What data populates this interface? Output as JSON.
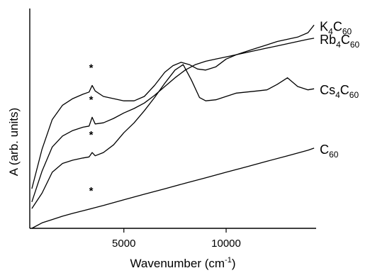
{
  "chart_data": {
    "type": "line",
    "xlabel": "Wavenumber (cm",
    "xlabel_sup": "-1",
    "xlabel_end": ")",
    "ylabel": "A (arb. units)",
    "xlim": [
      400,
      14400
    ],
    "ylim": [
      0,
      10
    ],
    "x_ticks": [
      5000,
      10000
    ],
    "x_tick_labels": [
      "5000",
      "10000"
    ],
    "grid": false,
    "legend": "labels at right end of each curve",
    "line_color": "#000000",
    "series": [
      {
        "name": "K4C60",
        "label_main": [
          "K",
          "C"
        ],
        "label_sub": [
          "4",
          "60"
        ],
        "points": [
          [
            500,
            1.8
          ],
          [
            1000,
            3.6
          ],
          [
            1500,
            4.95
          ],
          [
            2000,
            5.6
          ],
          [
            2500,
            5.9
          ],
          [
            3000,
            6.1
          ],
          [
            3300,
            6.2
          ],
          [
            3450,
            6.5
          ],
          [
            3600,
            6.25
          ],
          [
            4000,
            6.0
          ],
          [
            4500,
            5.9
          ],
          [
            5000,
            5.8
          ],
          [
            5500,
            5.8
          ],
          [
            6000,
            6.0
          ],
          [
            6500,
            6.5
          ],
          [
            7000,
            7.1
          ],
          [
            7400,
            7.4
          ],
          [
            7800,
            7.55
          ],
          [
            8200,
            7.45
          ],
          [
            8600,
            7.25
          ],
          [
            9000,
            7.2
          ],
          [
            9500,
            7.35
          ],
          [
            10000,
            7.7
          ],
          [
            10500,
            7.9
          ],
          [
            11000,
            8.05
          ],
          [
            11500,
            8.2
          ],
          [
            12000,
            8.35
          ],
          [
            12500,
            8.5
          ],
          [
            13000,
            8.6
          ],
          [
            13500,
            8.7
          ],
          [
            14000,
            8.9
          ],
          [
            14300,
            9.25
          ]
        ]
      },
      {
        "name": "Rb4C60",
        "label_main": [
          "Rb",
          "C"
        ],
        "label_sub": [
          "4",
          "60"
        ],
        "points": [
          [
            500,
            1.2
          ],
          [
            1000,
            2.6
          ],
          [
            1500,
            3.7
          ],
          [
            2000,
            4.2
          ],
          [
            2500,
            4.45
          ],
          [
            3000,
            4.6
          ],
          [
            3300,
            4.65
          ],
          [
            3450,
            5.05
          ],
          [
            3600,
            4.75
          ],
          [
            4000,
            4.8
          ],
          [
            4500,
            5.0
          ],
          [
            5000,
            5.25
          ],
          [
            5500,
            5.45
          ],
          [
            6000,
            5.7
          ],
          [
            6500,
            6.05
          ],
          [
            7000,
            6.45
          ],
          [
            7500,
            6.85
          ],
          [
            8000,
            7.2
          ],
          [
            8500,
            7.45
          ],
          [
            9000,
            7.6
          ],
          [
            9500,
            7.7
          ],
          [
            10000,
            7.8
          ],
          [
            10500,
            7.9
          ],
          [
            11000,
            8.0
          ],
          [
            11500,
            8.1
          ],
          [
            12000,
            8.2
          ],
          [
            12500,
            8.3
          ],
          [
            13000,
            8.4
          ],
          [
            13500,
            8.5
          ],
          [
            14000,
            8.6
          ],
          [
            14300,
            8.65
          ]
        ]
      },
      {
        "name": "Cs4C60",
        "label_main": [
          "Cs",
          "C"
        ],
        "label_sub": [
          "4",
          "60"
        ],
        "points": [
          [
            500,
            0.9
          ],
          [
            1000,
            1.6
          ],
          [
            1500,
            2.55
          ],
          [
            2000,
            2.95
          ],
          [
            2500,
            3.1
          ],
          [
            3000,
            3.2
          ],
          [
            3300,
            3.25
          ],
          [
            3450,
            3.45
          ],
          [
            3600,
            3.3
          ],
          [
            4000,
            3.45
          ],
          [
            4500,
            3.8
          ],
          [
            5000,
            4.35
          ],
          [
            5500,
            4.8
          ],
          [
            6000,
            5.35
          ],
          [
            6500,
            5.95
          ],
          [
            7000,
            6.6
          ],
          [
            7500,
            7.2
          ],
          [
            7900,
            7.45
          ],
          [
            8300,
            6.75
          ],
          [
            8700,
            5.95
          ],
          [
            9000,
            5.8
          ],
          [
            9500,
            5.85
          ],
          [
            10000,
            6.0
          ],
          [
            10500,
            6.15
          ],
          [
            11000,
            6.2
          ],
          [
            11500,
            6.25
          ],
          [
            12000,
            6.3
          ],
          [
            12500,
            6.55
          ],
          [
            13000,
            6.85
          ],
          [
            13500,
            6.45
          ],
          [
            14000,
            6.3
          ],
          [
            14300,
            6.35
          ]
        ]
      },
      {
        "name": "C60",
        "label_main": [
          "C"
        ],
        "label_sub": [
          "60"
        ],
        "points": [
          [
            500,
            0.0
          ],
          [
            1000,
            0.25
          ],
          [
            1500,
            0.4
          ],
          [
            2000,
            0.55
          ],
          [
            2500,
            0.68
          ],
          [
            3000,
            0.8
          ],
          [
            3500,
            0.92
          ],
          [
            4000,
            1.04
          ],
          [
            5000,
            1.3
          ],
          [
            6000,
            1.55
          ],
          [
            7000,
            1.8
          ],
          [
            8000,
            2.05
          ],
          [
            9000,
            2.3
          ],
          [
            10000,
            2.55
          ],
          [
            11000,
            2.8
          ],
          [
            12000,
            3.05
          ],
          [
            13000,
            3.3
          ],
          [
            14000,
            3.55
          ],
          [
            14300,
            3.65
          ]
        ]
      }
    ],
    "markers": [
      {
        "text": "*",
        "x": 3400,
        "y": 7.15
      },
      {
        "text": "*",
        "x": 3400,
        "y": 5.7
      },
      {
        "text": "*",
        "x": 3400,
        "y": 4.1
      },
      {
        "text": "*",
        "x": 3400,
        "y": 1.55
      }
    ]
  }
}
